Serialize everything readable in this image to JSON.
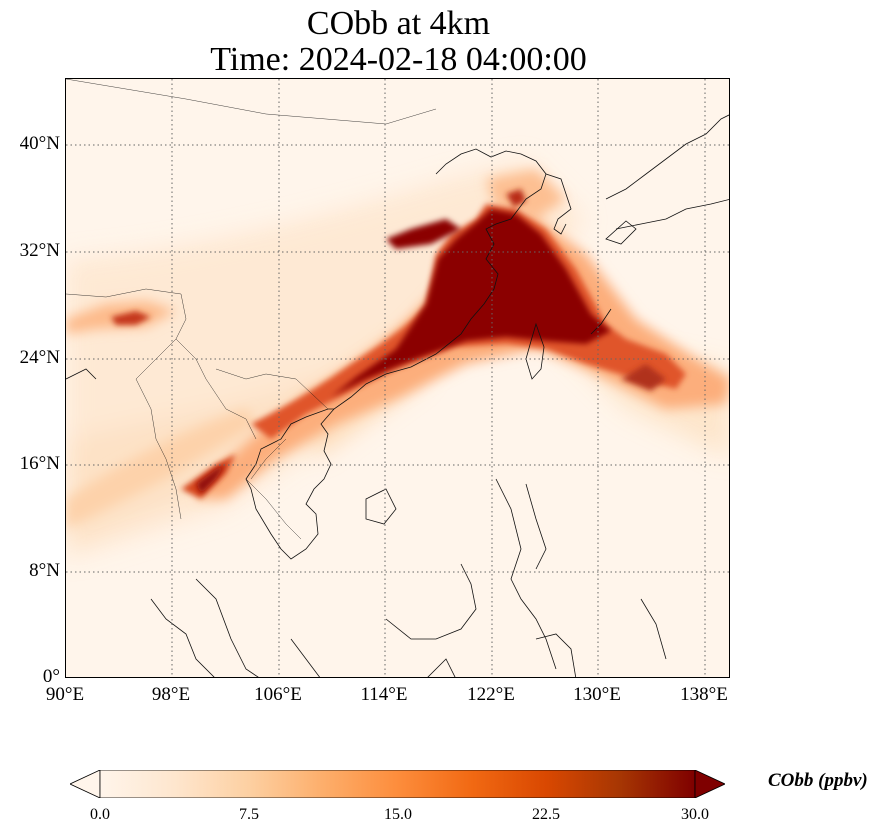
{
  "title": {
    "line1": "CObb at 4km",
    "line2": "Time: 2024-02-18 04:00:00"
  },
  "map": {
    "projection": "PlateCarree",
    "lon_range": [
      90,
      140
    ],
    "lat_range": [
      0,
      45
    ],
    "gridlines": "dotted",
    "lon_ticks": [
      "90°E",
      "98°E",
      "106°E",
      "114°E",
      "122°E",
      "130°E",
      "138°E"
    ],
    "lat_ticks": [
      "0°",
      "8°N",
      "16°N",
      "24°N",
      "32°N",
      "40°N"
    ],
    "plume_note_colors": {
      "low": "#fff5eb",
      "mid": "#fd8d3c",
      "high": "#7f0000"
    }
  },
  "colorbar": {
    "label": "CObb (ppbv)",
    "ticks": [
      "0.0",
      "7.5",
      "15.0",
      "22.5",
      "30.0"
    ],
    "range": [
      0,
      30
    ],
    "extend": "both",
    "colormap": [
      "#fff5eb",
      "#fee6ce",
      "#fdd0a2",
      "#fdae6b",
      "#fd8d3c",
      "#f16913",
      "#d94801",
      "#a63603",
      "#7f0000"
    ]
  }
}
